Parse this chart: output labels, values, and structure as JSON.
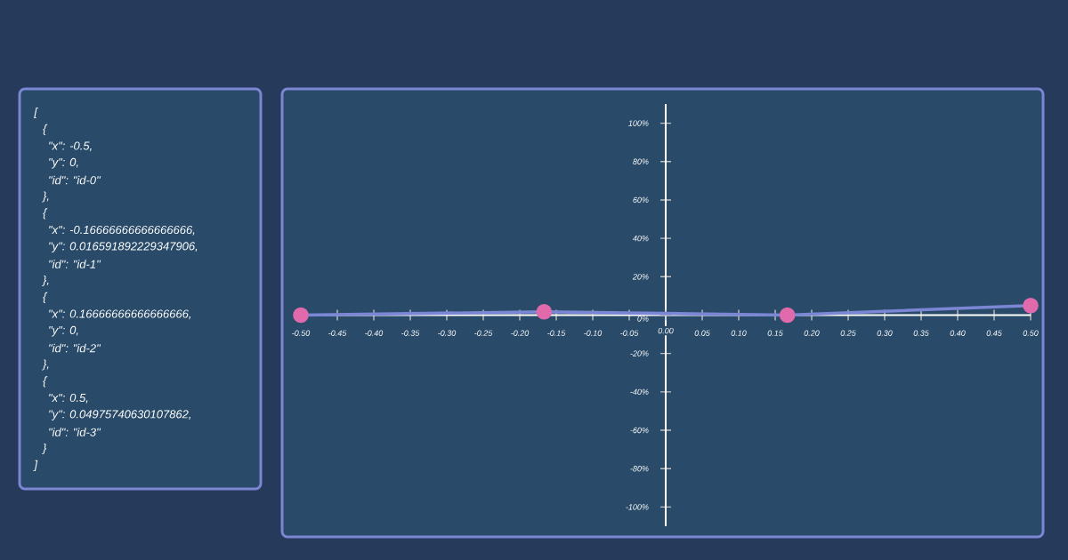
{
  "chart_data": [
    {
      "type": "other",
      "annotations": [
        "[",
        " {",
        "  \"x\": -0.5,",
        "  \"y\": 0,",
        "  \"id\": \"id-0\"",
        " },",
        " {",
        "  \"x\": -0.16666666666666666,",
        "  \"y\": 0.016591892229347906,",
        "  \"id\": \"id-1\"",
        " },",
        " {",
        "  \"x\": 0.16666666666666666,",
        "  \"y\": 0,",
        "  \"id\": \"id-2\"",
        " },",
        " {",
        "  \"x\": 0.5,",
        "  \"y\": 0.04975740630107862,",
        "  \"id\": \"id-3\"",
        " }",
        "]"
      ]
    },
    {
      "type": "line",
      "x": [
        -0.5,
        -0.16666666666666666,
        0.16666666666666666,
        0.5
      ],
      "series": [
        {
          "color": "#7b86d4",
          "values": [
            0,
            1.7,
            0,
            5
          ]
        }
      ],
      "marker": "circle",
      "xlim": [
        -0.5,
        0.5
      ],
      "ylim": [
        -110,
        110
      ],
      "xticks": [
        {
          "value": -0.5,
          "label": "-0.50"
        },
        {
          "value": -0.45,
          "label": "-0.45"
        },
        {
          "value": -0.4,
          "label": "-0.40"
        },
        {
          "value": -0.35,
          "label": "-0.35"
        },
        {
          "value": -0.3,
          "label": "-0.30"
        },
        {
          "value": -0.25,
          "label": "-0.25"
        },
        {
          "value": -0.2,
          "label": "-0.20"
        },
        {
          "value": -0.15,
          "label": "-0.15"
        },
        {
          "value": -0.1,
          "label": "-0.10"
        },
        {
          "value": -0.05,
          "label": "-0.05"
        },
        {
          "value": 0,
          "label": "0.00"
        },
        {
          "value": 0.05,
          "label": "0.05"
        },
        {
          "value": 0.1,
          "label": "0.10"
        },
        {
          "value": 0.15,
          "label": "0.15"
        },
        {
          "value": 0.2,
          "label": "0.20"
        },
        {
          "value": 0.25,
          "label": "0.25"
        },
        {
          "value": 0.3,
          "label": "0.30"
        },
        {
          "value": 0.35,
          "label": "0.35"
        },
        {
          "value": 0.4,
          "label": "0.40"
        },
        {
          "value": 0.45,
          "label": "0.45"
        },
        {
          "value": 0.5,
          "label": "0.50"
        }
      ],
      "yticks": [
        {
          "value": 100,
          "label": "100%"
        },
        {
          "value": 80,
          "label": "80%"
        },
        {
          "value": 60,
          "label": "60%"
        },
        {
          "value": 40,
          "label": "40%"
        },
        {
          "value": 20,
          "label": "20%"
        },
        {
          "value": 0,
          "label": "0%"
        },
        {
          "value": -20,
          "label": "-20%"
        },
        {
          "value": -40,
          "label": "-40%"
        },
        {
          "value": -60,
          "label": "-60%"
        },
        {
          "value": -80,
          "label": "-80%"
        },
        {
          "value": -100,
          "label": "-100%"
        }
      ]
    }
  ]
}
